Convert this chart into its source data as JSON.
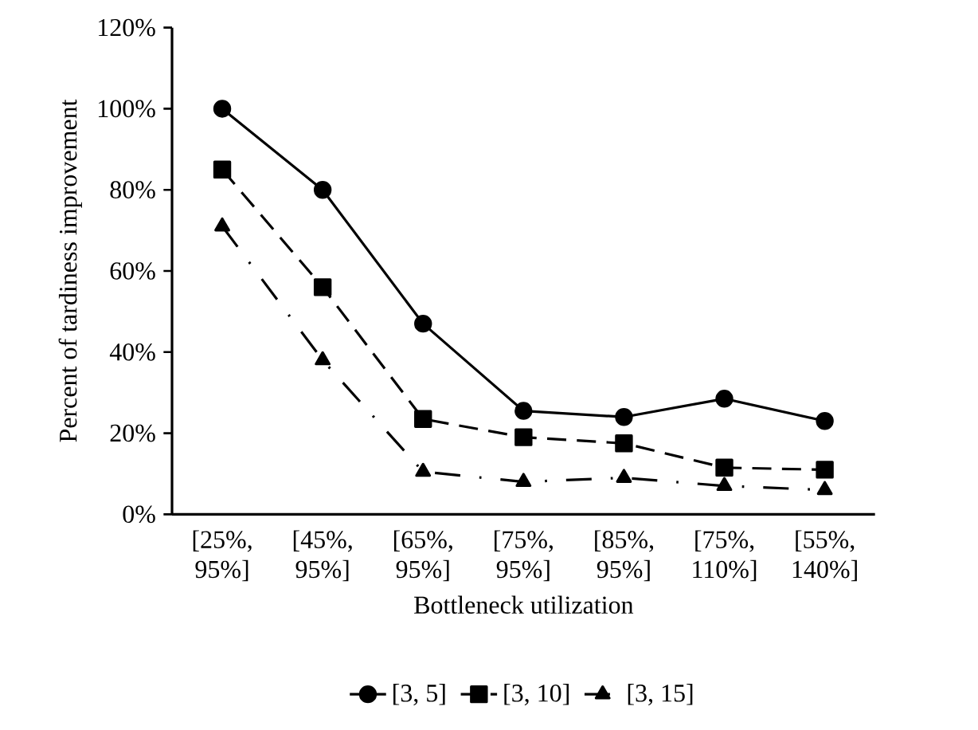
{
  "chart_data": {
    "type": "line",
    "xlabel": "Bottleneck utilization",
    "ylabel": "Percent of tardiness improvement",
    "categories": [
      "[25%, 95%]",
      "[45%, 95%]",
      "[65%, 95%]",
      "[75%, 95%]",
      "[85%, 95%]",
      "[75%, 110%]",
      "[55%, 140%]"
    ],
    "series": [
      {
        "name": "[3, 5]",
        "color": "#000000",
        "marker": "circle",
        "line_style": "solid",
        "values": [
          100,
          80,
          47,
          25.5,
          24,
          28.5,
          23
        ]
      },
      {
        "name": "[3, 10]",
        "color": "#000000",
        "marker": "square",
        "line_style": "dashed",
        "values": [
          85,
          56,
          23.5,
          19,
          17.5,
          11.5,
          11
        ]
      },
      {
        "name": "[3, 15]",
        "color": "#000000",
        "marker": "triangle",
        "line_style": "dashdot",
        "values": [
          71,
          38,
          10.5,
          8,
          9,
          7,
          6
        ]
      }
    ],
    "ylim": [
      0,
      120
    ],
    "yticks": [
      {
        "value": 0,
        "label": "0%"
      },
      {
        "value": 20,
        "label": "20%"
      },
      {
        "value": 40,
        "label": "40%"
      },
      {
        "value": 60,
        "label": "60%"
      },
      {
        "value": 80,
        "label": "80%"
      },
      {
        "value": 100,
        "label": "100%"
      },
      {
        "value": 120,
        "label": "120%"
      }
    ],
    "grid": false,
    "legend": "bottom"
  }
}
